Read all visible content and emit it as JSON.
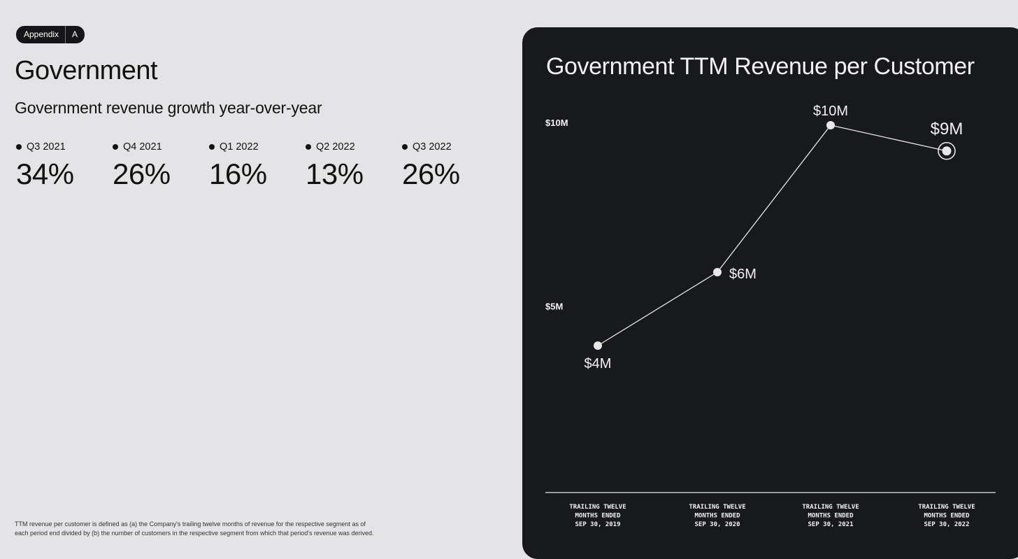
{
  "badge": {
    "label": "Appendix",
    "letter": "A"
  },
  "title": "Government",
  "subtitle": "Government revenue growth year-over-year",
  "growth": [
    {
      "quarter": "Q3 2021",
      "value": "34%"
    },
    {
      "quarter": "Q4 2021",
      "value": "26%"
    },
    {
      "quarter": "Q1 2022",
      "value": "16%"
    },
    {
      "quarter": "Q2 2022",
      "value": "13%"
    },
    {
      "quarter": "Q3 2022",
      "value": "26%"
    }
  ],
  "footnote": "TTM revenue per customer is defined as (a) the Company's trailing twelve months of revenue for the respective segment as of each period end divided by (b) the number of customers in the respective segment from which that period's revenue was derived.",
  "chart_data": {
    "type": "line",
    "title": "Government TTM Revenue per Customer",
    "categories": [
      [
        "TRAILING TWELVE",
        "MONTHS ENDED",
        "SEP 30, 2019"
      ],
      [
        "TRAILING TWELVE",
        "MONTHS ENDED",
        "SEP 30, 2020"
      ],
      [
        "TRAILING TWELVE",
        "MONTHS ENDED",
        "SEP 30, 2021"
      ],
      [
        "TRAILING TWELVE",
        "MONTHS ENDED",
        "SEP 30, 2022"
      ]
    ],
    "values": [
      4.0,
      6.0,
      10.0,
      9.3
    ],
    "labels": [
      "$4M",
      "$6M",
      "$10M",
      "$9M"
    ],
    "yticks": [
      {
        "value": 10,
        "label": "$10M"
      },
      {
        "value": 5,
        "label": "$5M"
      }
    ],
    "ylim": [
      0,
      10
    ],
    "units": "millions USD",
    "colors": {
      "background": "#18191c",
      "line": "#e8e8e8",
      "text": "#f2f2f2"
    }
  }
}
